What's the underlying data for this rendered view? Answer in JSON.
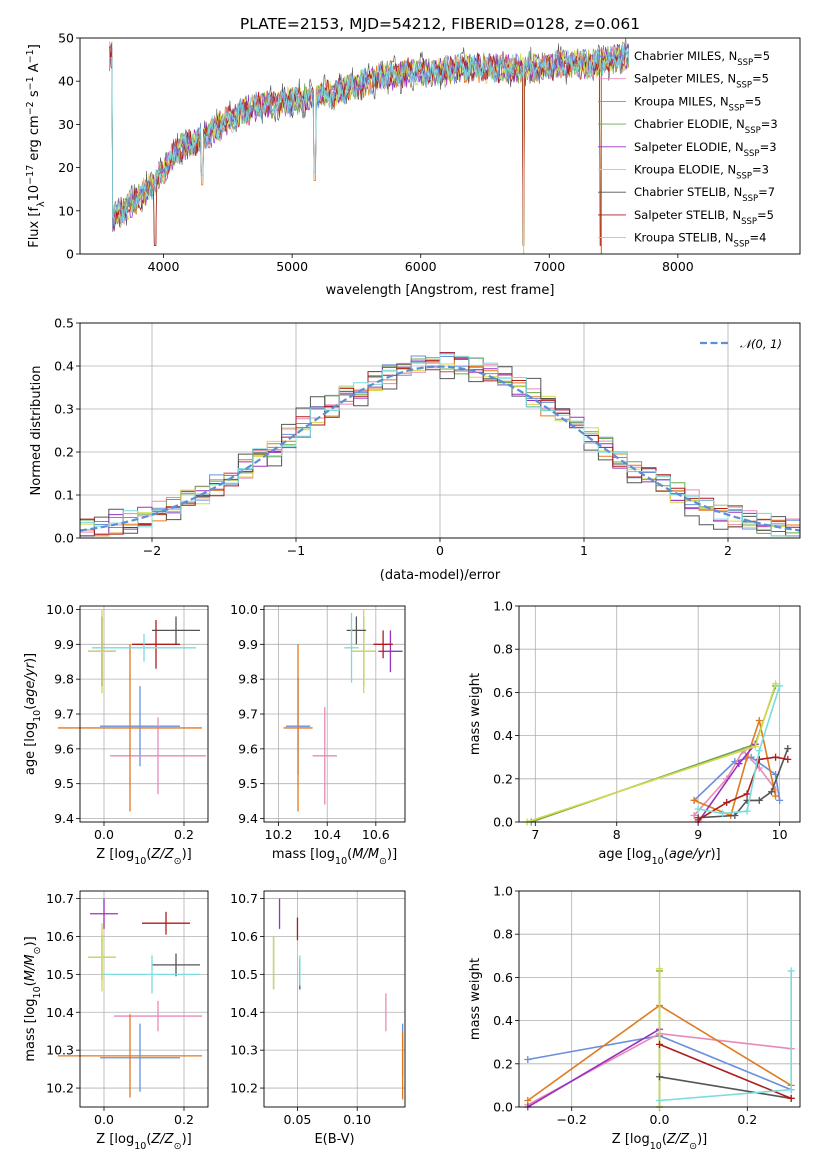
{
  "title": "PLATE=2153, MJD=54212, FIBERID=0128, z=0.061",
  "colors": {
    "c_miles": "#6a8fdc",
    "s_miles": "#e88ab8",
    "k_miles": "#e07a20",
    "c_elodie": "#6aa84f",
    "s_elodie": "#9a32c0",
    "k_elodie": "#d6d84e",
    "c_stelib": "#555555",
    "s_stelib": "#b01c1c",
    "k_stelib": "#7adcdc",
    "gauss": "#5b8fd6"
  },
  "chart_data": [
    {
      "id": "spectrum",
      "type": "line",
      "title": "PLATE=2153, MJD=54212, FIBERID=0128, z=0.061",
      "xlabel": "wavelength [Angstrom, rest frame]",
      "ylabel": "Flux [fλ10⁻¹⁷ erg cm⁻² s⁻¹ A⁻¹]",
      "xlim": [
        3350,
        8950
      ],
      "ylim": [
        0,
        50
      ],
      "xticks": [
        4000,
        5000,
        6000,
        7000,
        8000
      ],
      "yticks": [
        0,
        10,
        20,
        30,
        40,
        50
      ],
      "legend_position": "top-right",
      "legend": [
        {
          "key": "c_miles",
          "label": "Chabrier MILES, N",
          "sub": "SSP",
          "suffix": "=5"
        },
        {
          "key": "s_miles",
          "label": "Salpeter MILES, N",
          "sub": "SSP",
          "suffix": "=5"
        },
        {
          "key": "k_miles",
          "label": "Kroupa MILES, N",
          "sub": "SSP",
          "suffix": "=5"
        },
        {
          "key": "c_elodie",
          "label": "Chabrier ELODIE, N",
          "sub": "SSP",
          "suffix": "=3"
        },
        {
          "key": "s_elodie",
          "label": "Salpeter ELODIE, N",
          "sub": "SSP",
          "suffix": "=3"
        },
        {
          "key": "k_elodie",
          "label": "Kroupa ELODIE, N",
          "sub": "SSP",
          "suffix": "=3"
        },
        {
          "key": "c_stelib",
          "label": "Chabrier STELIB, N",
          "sub": "SSP",
          "suffix": "=7"
        },
        {
          "key": "s_stelib",
          "label": "Salpeter STELIB, N",
          "sub": "SSP",
          "suffix": "=5"
        },
        {
          "key": "k_stelib",
          "label": "Kroupa STELIB, N",
          "sub": "SSP",
          "suffix": "=4"
        }
      ],
      "continuum": [
        [
          3600,
          8
        ],
        [
          3800,
          13
        ],
        [
          3950,
          17
        ],
        [
          4100,
          24
        ],
        [
          4300,
          27
        ],
        [
          4500,
          31
        ],
        [
          4700,
          34
        ],
        [
          4900,
          35
        ],
        [
          5100,
          36
        ],
        [
          5300,
          37
        ],
        [
          5500,
          39
        ],
        [
          5700,
          41
        ],
        [
          5900,
          42
        ],
        [
          6100,
          42
        ],
        [
          6300,
          43
        ],
        [
          6500,
          43
        ],
        [
          6700,
          43
        ],
        [
          6900,
          43
        ],
        [
          7100,
          44
        ],
        [
          7300,
          44
        ],
        [
          7500,
          45
        ],
        [
          7600,
          46
        ]
      ],
      "dips": [
        [
          3934,
          0
        ],
        [
          4300,
          16
        ],
        [
          5175,
          17
        ],
        [
          6800,
          0
        ],
        [
          7400,
          0
        ]
      ]
    },
    {
      "id": "histogram",
      "type": "step",
      "xlabel": "(data-model)/error",
      "ylabel": "Normed distribution",
      "xlim": [
        -2.5,
        2.5
      ],
      "ylim": [
        0,
        0.5
      ],
      "xticks": [
        -2,
        -1,
        0,
        1,
        2
      ],
      "yticks": [
        0.0,
        0.1,
        0.2,
        0.3,
        0.4,
        0.5
      ],
      "legend_position": "top-right",
      "gauss_label": "𝒩(0, 1)",
      "bin_width": 0.1
    },
    {
      "id": "age_vs_Z",
      "type": "errorbar",
      "xlabel": "Z [log₁₀(Z/Z⊙)]",
      "ylabel": "age [log₁₀(age/yr)]",
      "xlim": [
        -0.06,
        0.26
      ],
      "ylim": [
        9.39,
        10.01
      ],
      "xticks": [
        0.0,
        0.2
      ],
      "yticks": [
        9.4,
        9.5,
        9.6,
        9.7,
        9.8,
        9.9,
        10.0
      ],
      "points": [
        {
          "key": "c_miles",
          "x": 0.09,
          "xe": 0.1,
          "y": 9.665,
          "ye": 0.115
        },
        {
          "key": "s_miles",
          "x": 0.135,
          "xe": 0.12,
          "y": 9.58,
          "ye": 0.11
        },
        {
          "key": "k_miles",
          "x": 0.065,
          "xe": 0.18,
          "y": 9.66,
          "ye": 0.24
        },
        {
          "key": "c_elodie",
          "x": -0.005,
          "xe": 0.035,
          "y": 9.88,
          "ye": 0.1
        },
        {
          "key": "s_elodie",
          "x": -0.005,
          "xe": 0.035,
          "y": 9.88,
          "ye": 0.1
        },
        {
          "key": "k_elodie",
          "x": -0.005,
          "xe": 0.035,
          "y": 9.88,
          "ye": 0.12
        },
        {
          "key": "c_stelib",
          "x": 0.18,
          "xe": 0.06,
          "y": 9.94,
          "ye": 0.04
        },
        {
          "key": "s_stelib",
          "x": 0.13,
          "xe": 0.06,
          "y": 9.9,
          "ye": 0.07
        },
        {
          "key": "k_stelib",
          "x": 0.1,
          "xe": 0.13,
          "y": 9.89,
          "ye": 0.04
        }
      ]
    },
    {
      "id": "age_vs_mass",
      "type": "errorbar",
      "xlabel": "mass [log₁₀(M/M⊙)]",
      "ylabel": "",
      "xlim": [
        10.14,
        10.72
      ],
      "ylim": [
        9.39,
        10.01
      ],
      "xticks": [
        10.2,
        10.4,
        10.6
      ],
      "yticks": [
        9.4,
        9.5,
        9.6,
        9.7,
        9.8,
        9.9,
        10.0
      ],
      "points": [
        {
          "key": "c_miles",
          "x": 10.28,
          "xe": 0.05,
          "y": 9.665,
          "ye": 0.14
        },
        {
          "key": "s_miles",
          "x": 10.39,
          "xe": 0.05,
          "y": 9.58,
          "ye": 0.14
        },
        {
          "key": "k_miles",
          "x": 10.28,
          "xe": 0.06,
          "y": 9.66,
          "ye": 0.24
        },
        {
          "key": "c_elodie",
          "x": 10.55,
          "xe": 0.05,
          "y": 9.88,
          "ye": 0.1
        },
        {
          "key": "s_elodie",
          "x": 10.66,
          "xe": 0.05,
          "y": 9.88,
          "ye": 0.06
        },
        {
          "key": "k_elodie",
          "x": 10.55,
          "xe": 0.05,
          "y": 9.88,
          "ye": 0.12
        },
        {
          "key": "c_stelib",
          "x": 10.52,
          "xe": 0.04,
          "y": 9.94,
          "ye": 0.04
        },
        {
          "key": "s_stelib",
          "x": 10.63,
          "xe": 0.04,
          "y": 9.9,
          "ye": 0.04
        },
        {
          "key": "k_stelib",
          "x": 10.5,
          "xe": 0.03,
          "y": 9.89,
          "ye": 0.1
        }
      ]
    },
    {
      "id": "massweight_vs_age",
      "type": "line",
      "xlabel": "age [log₁₀(age/yr)]",
      "ylabel": "mass weight",
      "xlim": [
        6.8,
        10.25
      ],
      "ylim": [
        0,
        1
      ],
      "xticks": [
        7,
        8,
        9,
        10
      ],
      "yticks": [
        0.0,
        0.2,
        0.4,
        0.6,
        0.8,
        1.0
      ],
      "series": [
        {
          "key": "c_miles",
          "x": [
            8.95,
            9.45,
            9.65,
            9.95,
            10.0
          ],
          "y": [
            0.1,
            0.28,
            0.3,
            0.22,
            0.1
          ]
        },
        {
          "key": "s_miles",
          "x": [
            8.95,
            9.35,
            9.55,
            9.75,
            9.95
          ],
          "y": [
            0.03,
            0.2,
            0.33,
            0.25,
            0.15
          ]
        },
        {
          "key": "k_miles",
          "x": [
            8.95,
            9.4,
            9.6,
            9.75,
            9.95
          ],
          "y": [
            0.1,
            0.03,
            0.3,
            0.47,
            0.12
          ]
        },
        {
          "key": "c_elodie",
          "x": [
            6.95,
            9.7,
            9.95
          ],
          "y": [
            0.0,
            0.36,
            0.63
          ]
        },
        {
          "key": "s_elodie",
          "x": [
            9.0,
            9.5,
            9.7
          ],
          "y": [
            0.0,
            0.27,
            0.36
          ]
        },
        {
          "key": "k_elodie",
          "x": [
            6.9,
            9.7,
            9.95
          ],
          "y": [
            0.0,
            0.35,
            0.64
          ]
        },
        {
          "key": "c_stelib",
          "x": [
            9.0,
            9.45,
            9.6,
            9.75,
            9.9,
            10.1
          ],
          "y": [
            0.02,
            0.03,
            0.1,
            0.1,
            0.14,
            0.34
          ]
        },
        {
          "key": "s_stelib",
          "x": [
            9.0,
            9.35,
            9.6,
            9.75,
            9.95,
            10.1
          ],
          "y": [
            0.01,
            0.09,
            0.13,
            0.29,
            0.3,
            0.29
          ]
        },
        {
          "key": "k_stelib",
          "x": [
            9.0,
            9.3,
            9.6,
            9.75,
            10.0
          ],
          "y": [
            0.06,
            0.04,
            0.05,
            0.33,
            0.63
          ]
        }
      ]
    },
    {
      "id": "mass_vs_Z",
      "type": "errorbar",
      "xlabel": "Z [log₁₀(Z/Z⊙)]",
      "ylabel": "mass [log₁₀(M/M⊙)]",
      "xlim": [
        -0.06,
        0.26
      ],
      "ylim": [
        10.15,
        10.72
      ],
      "xticks": [
        0.0,
        0.2
      ],
      "yticks": [
        10.2,
        10.3,
        10.4,
        10.5,
        10.6,
        10.7
      ],
      "points": [
        {
          "key": "c_miles",
          "x": 0.09,
          "xe": 0.1,
          "y": 10.28,
          "ye": 0.09
        },
        {
          "key": "s_miles",
          "x": 0.135,
          "xe": 0.11,
          "y": 10.39,
          "ye": 0.04
        },
        {
          "key": "k_miles",
          "x": 0.065,
          "xe": 0.18,
          "y": 10.285,
          "ye": 0.11
        },
        {
          "key": "c_elodie",
          "x": -0.005,
          "xe": 0.035,
          "y": 10.545,
          "ye": 0.06
        },
        {
          "key": "s_elodie",
          "x": 0.0,
          "xe": 0.035,
          "y": 10.66,
          "ye": 0.04
        },
        {
          "key": "k_elodie",
          "x": -0.005,
          "xe": 0.035,
          "y": 10.545,
          "ye": 0.09
        },
        {
          "key": "c_stelib",
          "x": 0.18,
          "xe": 0.06,
          "y": 10.525,
          "ye": 0.03
        },
        {
          "key": "s_stelib",
          "x": 0.155,
          "xe": 0.06,
          "y": 10.635,
          "ye": 0.03
        },
        {
          "key": "k_stelib",
          "x": 0.12,
          "xe": 0.12,
          "y": 10.5,
          "ye": 0.05
        }
      ]
    },
    {
      "id": "mass_vs_ebv",
      "type": "errorbar",
      "xlabel": "E(B-V)",
      "ylabel": "",
      "xlim": [
        0.022,
        0.14
      ],
      "ylim": [
        10.15,
        10.72
      ],
      "xticks": [
        0.05,
        0.1
      ],
      "yticks": [
        10.2,
        10.3,
        10.4,
        10.5,
        10.6,
        10.7
      ],
      "points": [
        {
          "key": "c_miles",
          "x": 0.138,
          "xe": 0,
          "y": 10.3,
          "ye": 0.07
        },
        {
          "key": "s_miles",
          "x": 0.124,
          "xe": 0,
          "y": 10.4,
          "ye": 0.05
        },
        {
          "key": "k_miles",
          "x": 0.138,
          "xe": 0,
          "y": 10.26,
          "ye": 0.09
        },
        {
          "key": "c_elodie",
          "x": 0.03,
          "xe": 0,
          "y": 10.53,
          "ye": 0.07
        },
        {
          "key": "s_elodie",
          "x": 0.035,
          "xe": 0,
          "y": 10.66,
          "ye": 0.04
        },
        {
          "key": "k_elodie",
          "x": 0.03,
          "xe": 0,
          "y": 10.53,
          "ye": 0.07
        },
        {
          "key": "c_stelib",
          "x": 0.052,
          "xe": 0,
          "y": 10.5,
          "ye": 0.04
        },
        {
          "key": "s_stelib",
          "x": 0.05,
          "xe": 0,
          "y": 10.62,
          "ye": 0.03
        },
        {
          "key": "k_stelib",
          "x": 0.052,
          "xe": 0,
          "y": 10.51,
          "ye": 0.04
        }
      ]
    },
    {
      "id": "massweight_vs_Z",
      "type": "line",
      "xlabel": "Z [log₁₀(Z/Z⊙)]",
      "ylabel": "mass weight",
      "xlim": [
        -0.32,
        0.32
      ],
      "ylim": [
        0,
        1
      ],
      "xticks": [
        -0.2,
        0.0,
        0.2
      ],
      "yticks": [
        0.0,
        0.2,
        0.4,
        0.6,
        0.8,
        1.0
      ],
      "series": [
        {
          "key": "c_miles",
          "x": [
            -0.3,
            0.0,
            0.3
          ],
          "y": [
            0.22,
            0.33,
            0.08
          ]
        },
        {
          "key": "s_miles",
          "x": [
            -0.3,
            0.0,
            0.3
          ],
          "y": [
            0.01,
            0.34,
            0.27
          ]
        },
        {
          "key": "k_miles",
          "x": [
            -0.3,
            0.0,
            0.3
          ],
          "y": [
            0.03,
            0.47,
            0.1
          ]
        },
        {
          "key": "c_elodie",
          "x": [
            0.0,
            0.0
          ],
          "y": [
            0.0,
            0.63
          ]
        },
        {
          "key": "s_elodie",
          "x": [
            -0.3,
            0.0
          ],
          "y": [
            0.0,
            0.36
          ]
        },
        {
          "key": "k_elodie",
          "x": [
            0.0,
            0.0
          ],
          "y": [
            0.0,
            0.64
          ]
        },
        {
          "key": "c_stelib",
          "x": [
            0.0,
            0.3
          ],
          "y": [
            0.14,
            0.04
          ]
        },
        {
          "key": "s_stelib",
          "x": [
            0.0,
            0.3
          ],
          "y": [
            0.29,
            0.04
          ]
        },
        {
          "key": "k_stelib",
          "x": [
            0.0,
            0.3,
            0.3
          ],
          "y": [
            0.03,
            0.08,
            0.63
          ]
        }
      ]
    }
  ]
}
